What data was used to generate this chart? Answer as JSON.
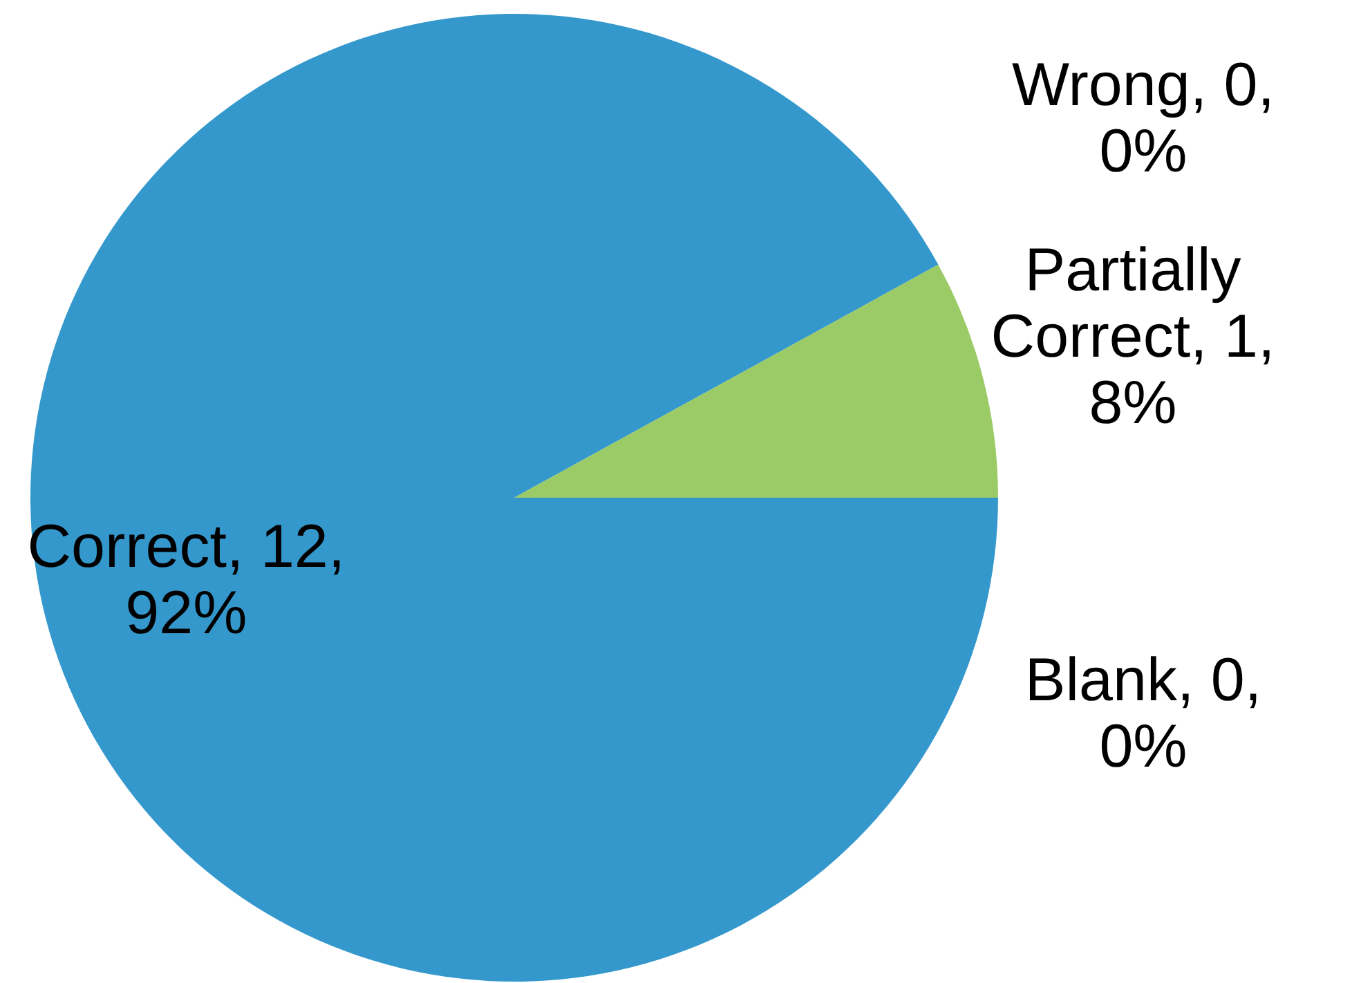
{
  "chart_data": {
    "type": "pie",
    "categories": [
      "Blank",
      "Correct",
      "Partially Correct",
      "Wrong"
    ],
    "values": [
      0,
      92,
      8,
      0
    ],
    "value_labels": [
      ", 0, 0%",
      ", 12, 92%",
      ", 1, 8%",
      ", 0, 0%"
    ],
    "colors": [
      "#9acb66",
      "#3498cd",
      "#9acb66",
      "#9acb66"
    ]
  }
}
